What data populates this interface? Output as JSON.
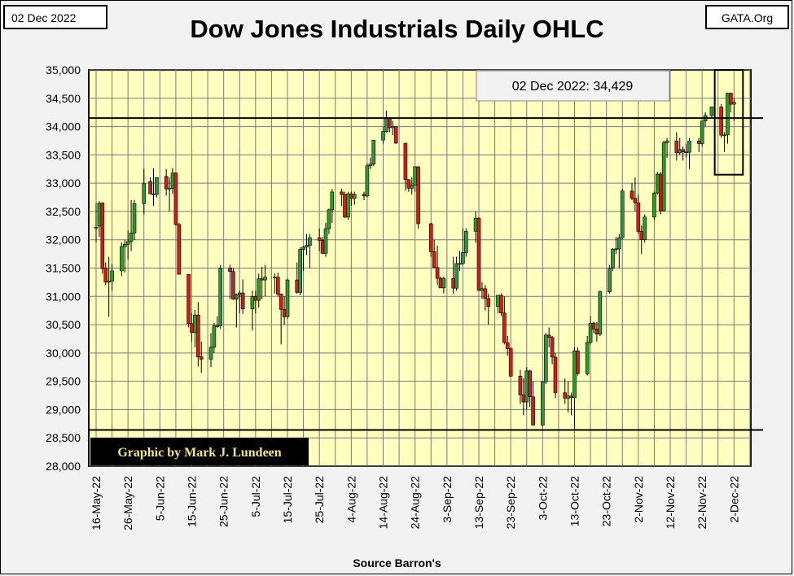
{
  "header": {
    "date_label": "02 Dec 2022",
    "source_label": "GATA.Org",
    "title": "Dow Jones Industrials Daily OHLC"
  },
  "annotation": {
    "callout": "02 Dec 2022: 34,429",
    "credit": "Graphic by Mark J. Lundeen"
  },
  "footer": {
    "source": "Source Barron's"
  },
  "colors": {
    "plot_bg": "#ffffc0",
    "up": "#2e9a2e",
    "down": "#cc1e1e",
    "grid": "#7a7a7a"
  },
  "chart_data": {
    "type": "ohlc",
    "title": "Dow Jones Industrials Daily OHLC",
    "xlabel": "",
    "ylabel": "",
    "ylim": [
      28000,
      35000
    ],
    "y_ticks": [
      "28,000",
      "28,500",
      "29,000",
      "29,500",
      "30,000",
      "30,500",
      "31,000",
      "31,500",
      "32,000",
      "32,500",
      "33,000",
      "33,500",
      "34,000",
      "34,500",
      "35,000"
    ],
    "x_ticks": [
      "16-May-22",
      "26-May-22",
      "5-Jun-22",
      "15-Jun-22",
      "25-Jun-22",
      "5-Jul-22",
      "15-Jul-22",
      "25-Jul-22",
      "4-Aug-22",
      "14-Aug-22",
      "24-Aug-22",
      "3-Sep-22",
      "13-Sep-22",
      "23-Sep-22",
      "3-Oct-22",
      "13-Oct-22",
      "23-Oct-22",
      "2-Nov-22",
      "12-Nov-22",
      "22-Nov-22",
      "2-Dec-22"
    ],
    "grid": true,
    "reference_lines": [
      34150,
      28640
    ],
    "highlight_range_days": [
      196,
      200
    ],
    "series": [
      {
        "day": 0,
        "o": 32210,
        "h": 32650,
        "l": 31950,
        "c": 32220
      },
      {
        "day": 1,
        "o": 32240,
        "h": 32680,
        "l": 32050,
        "c": 32640
      },
      {
        "day": 2,
        "o": 32650,
        "h": 32660,
        "l": 31400,
        "c": 31490
      },
      {
        "day": 3,
        "o": 31500,
        "h": 31600,
        "l": 31200,
        "c": 31250
      },
      {
        "day": 4,
        "o": 31250,
        "h": 31700,
        "l": 30640,
        "c": 31270
      },
      {
        "day": 5,
        "o": 31270,
        "h": 31580,
        "l": 31100,
        "c": 31450
      },
      {
        "day": 8,
        "o": 31450,
        "h": 31950,
        "l": 31360,
        "c": 31880
      },
      {
        "day": 9,
        "o": 31880,
        "h": 32000,
        "l": 31420,
        "c": 31920
      },
      {
        "day": 10,
        "o": 31920,
        "h": 32160,
        "l": 31650,
        "c": 31970
      },
      {
        "day": 11,
        "o": 31970,
        "h": 32700,
        "l": 31800,
        "c": 32120
      },
      {
        "day": 12,
        "o": 32120,
        "h": 32700,
        "l": 32000,
        "c": 32640
      },
      {
        "day": 15,
        "o": 32640,
        "h": 33250,
        "l": 32450,
        "c": 32990
      },
      {
        "day": 17,
        "o": 33030,
        "h": 33100,
        "l": 32810,
        "c": 32810
      },
      {
        "day": 18,
        "o": 32810,
        "h": 33260,
        "l": 32600,
        "c": 32800
      },
      {
        "day": 19,
        "o": 32800,
        "h": 33100,
        "l": 32750,
        "c": 33100
      },
      {
        "day": 22,
        "o": 33120,
        "h": 33250,
        "l": 32780,
        "c": 32900
      },
      {
        "day": 23,
        "o": 32900,
        "h": 33100,
        "l": 32500,
        "c": 32910
      },
      {
        "day": 24,
        "o": 32910,
        "h": 33270,
        "l": 32810,
        "c": 33180
      },
      {
        "day": 25,
        "o": 33180,
        "h": 33190,
        "l": 32250,
        "c": 32270
      },
      {
        "day": 26,
        "o": 32270,
        "h": 32300,
        "l": 31390,
        "c": 31390
      },
      {
        "day": 29,
        "o": 31390,
        "h": 31390,
        "l": 30450,
        "c": 30520
      },
      {
        "day": 30,
        "o": 30520,
        "h": 30710,
        "l": 30200,
        "c": 30360
      },
      {
        "day": 31,
        "o": 30360,
        "h": 30760,
        "l": 30100,
        "c": 30670
      },
      {
        "day": 32,
        "o": 30670,
        "h": 30900,
        "l": 29760,
        "c": 29930
      },
      {
        "day": 33,
        "o": 29930,
        "h": 30200,
        "l": 29650,
        "c": 29890
      },
      {
        "day": 36,
        "o": 29890,
        "h": 30350,
        "l": 29750,
        "c": 30100
      },
      {
        "day": 37,
        "o": 30100,
        "h": 30530,
        "l": 30000,
        "c": 30480
      },
      {
        "day": 38,
        "o": 30480,
        "h": 30650,
        "l": 30450,
        "c": 30480
      },
      {
        "day": 39,
        "o": 30480,
        "h": 31550,
        "l": 30430,
        "c": 31500
      },
      {
        "day": 42,
        "o": 31500,
        "h": 31560,
        "l": 30950,
        "c": 31440
      },
      {
        "day": 43,
        "o": 31440,
        "h": 31500,
        "l": 30940,
        "c": 30950
      },
      {
        "day": 44,
        "o": 30950,
        "h": 31050,
        "l": 30450,
        "c": 31030
      },
      {
        "day": 45,
        "o": 31030,
        "h": 31100,
        "l": 30700,
        "c": 31060
      },
      {
        "day": 46,
        "o": 31060,
        "h": 31300,
        "l": 30690,
        "c": 30780
      },
      {
        "day": 49,
        "o": 30780,
        "h": 31100,
        "l": 30400,
        "c": 31000
      },
      {
        "day": 50,
        "o": 31000,
        "h": 31100,
        "l": 30700,
        "c": 30930
      },
      {
        "day": 51,
        "o": 30930,
        "h": 31400,
        "l": 30800,
        "c": 31310
      },
      {
        "day": 52,
        "o": 31310,
        "h": 31520,
        "l": 30950,
        "c": 31290
      },
      {
        "day": 53,
        "o": 31290,
        "h": 31550,
        "l": 31000,
        "c": 31340
      },
      {
        "day": 56,
        "o": 31340,
        "h": 31400,
        "l": 31050,
        "c": 31340
      },
      {
        "day": 57,
        "o": 31340,
        "h": 31420,
        "l": 31000,
        "c": 31040
      },
      {
        "day": 58,
        "o": 31040,
        "h": 31050,
        "l": 30150,
        "c": 30770
      },
      {
        "day": 59,
        "o": 30770,
        "h": 31000,
        "l": 30500,
        "c": 30640
      },
      {
        "day": 60,
        "o": 30640,
        "h": 31320,
        "l": 30600,
        "c": 31290
      },
      {
        "day": 63,
        "o": 31290,
        "h": 31600,
        "l": 31050,
        "c": 31070
      },
      {
        "day": 64,
        "o": 31070,
        "h": 31870,
        "l": 31020,
        "c": 31830
      },
      {
        "day": 65,
        "o": 31830,
        "h": 31890,
        "l": 31450,
        "c": 31870
      },
      {
        "day": 66,
        "o": 31870,
        "h": 32100,
        "l": 31730,
        "c": 31900
      },
      {
        "day": 67,
        "o": 31900,
        "h": 32100,
        "l": 31500,
        "c": 32036
      },
      {
        "day": 70,
        "o": 32036,
        "h": 32200,
        "l": 31800,
        "c": 31990
      },
      {
        "day": 71,
        "o": 31990,
        "h": 32050,
        "l": 31750,
        "c": 31760
      },
      {
        "day": 72,
        "o": 31760,
        "h": 32300,
        "l": 31700,
        "c": 32197
      },
      {
        "day": 73,
        "o": 32197,
        "h": 32550,
        "l": 32100,
        "c": 32530
      },
      {
        "day": 74,
        "o": 32530,
        "h": 32900,
        "l": 32300,
        "c": 32845
      },
      {
        "day": 77,
        "o": 32845,
        "h": 32900,
        "l": 32600,
        "c": 32800
      },
      {
        "day": 78,
        "o": 32800,
        "h": 32850,
        "l": 32380,
        "c": 32400
      },
      {
        "day": 79,
        "o": 32400,
        "h": 32850,
        "l": 32350,
        "c": 32810
      },
      {
        "day": 80,
        "o": 32810,
        "h": 32850,
        "l": 32600,
        "c": 32730
      },
      {
        "day": 81,
        "o": 32730,
        "h": 32850,
        "l": 32620,
        "c": 32803
      },
      {
        "day": 84,
        "o": 32803,
        "h": 32850,
        "l": 32700,
        "c": 32774
      },
      {
        "day": 85,
        "o": 32774,
        "h": 33350,
        "l": 32750,
        "c": 33309
      },
      {
        "day": 86,
        "o": 33309,
        "h": 33450,
        "l": 33250,
        "c": 33336
      },
      {
        "day": 87,
        "o": 33336,
        "h": 33750,
        "l": 33300,
        "c": 33761
      },
      {
        "day": 90,
        "o": 33761,
        "h": 34000,
        "l": 33700,
        "c": 33912
      },
      {
        "day": 91,
        "o": 33912,
        "h": 34280,
        "l": 33900,
        "c": 34152
      },
      {
        "day": 92,
        "o": 34152,
        "h": 34150,
        "l": 33900,
        "c": 33980
      },
      {
        "day": 93,
        "o": 33980,
        "h": 34100,
        "l": 33850,
        "c": 33999
      },
      {
        "day": 94,
        "o": 33999,
        "h": 33990,
        "l": 33700,
        "c": 33706
      },
      {
        "day": 97,
        "o": 33706,
        "h": 33710,
        "l": 32870,
        "c": 33063
      },
      {
        "day": 98,
        "o": 33063,
        "h": 33000,
        "l": 32850,
        "c": 32910
      },
      {
        "day": 99,
        "o": 32910,
        "h": 33100,
        "l": 32800,
        "c": 32970
      },
      {
        "day": 100,
        "o": 32970,
        "h": 33300,
        "l": 32850,
        "c": 33290
      },
      {
        "day": 101,
        "o": 33290,
        "h": 33300,
        "l": 32200,
        "c": 32283
      },
      {
        "day": 105,
        "o": 32283,
        "h": 32300,
        "l": 31700,
        "c": 31790
      },
      {
        "day": 106,
        "o": 31790,
        "h": 32000,
        "l": 31500,
        "c": 31510
      },
      {
        "day": 107,
        "o": 31510,
        "h": 31900,
        "l": 31200,
        "c": 31320
      },
      {
        "day": 108,
        "o": 31320,
        "h": 31350,
        "l": 31150,
        "c": 31150
      },
      {
        "day": 109,
        "o": 31150,
        "h": 31350,
        "l": 31050,
        "c": 31318
      },
      {
        "day": 112,
        "o": 31318,
        "h": 31700,
        "l": 31050,
        "c": 31145
      },
      {
        "day": 113,
        "o": 31145,
        "h": 31700,
        "l": 31100,
        "c": 31580
      },
      {
        "day": 114,
        "o": 31580,
        "h": 31800,
        "l": 31450,
        "c": 31581
      },
      {
        "day": 115,
        "o": 31581,
        "h": 32200,
        "l": 31550,
        "c": 31774
      },
      {
        "day": 116,
        "o": 31774,
        "h": 32200,
        "l": 31700,
        "c": 32151
      },
      {
        "day": 119,
        "o": 32151,
        "h": 32500,
        "l": 31950,
        "c": 32381
      },
      {
        "day": 120,
        "o": 32381,
        "h": 32400,
        "l": 31100,
        "c": 31104
      },
      {
        "day": 121,
        "o": 31104,
        "h": 31250,
        "l": 30950,
        "c": 31135
      },
      {
        "day": 122,
        "o": 31135,
        "h": 31200,
        "l": 30750,
        "c": 30961
      },
      {
        "day": 123,
        "o": 30961,
        "h": 31050,
        "l": 30500,
        "c": 30822
      },
      {
        "day": 126,
        "o": 30822,
        "h": 31000,
        "l": 30700,
        "c": 31019
      },
      {
        "day": 127,
        "o": 31019,
        "h": 31050,
        "l": 30650,
        "c": 30706
      },
      {
        "day": 128,
        "o": 30706,
        "h": 31000,
        "l": 30150,
        "c": 30184
      },
      {
        "day": 129,
        "o": 30184,
        "h": 30300,
        "l": 29950,
        "c": 30077
      },
      {
        "day": 130,
        "o": 30077,
        "h": 30100,
        "l": 29580,
        "c": 29590
      },
      {
        "day": 133,
        "o": 29590,
        "h": 29700,
        "l": 29100,
        "c": 29260
      },
      {
        "day": 134,
        "o": 29260,
        "h": 29550,
        "l": 28900,
        "c": 29135
      },
      {
        "day": 135,
        "o": 29135,
        "h": 29750,
        "l": 29000,
        "c": 29684
      },
      {
        "day": 136,
        "o": 29684,
        "h": 29700,
        "l": 29050,
        "c": 29226
      },
      {
        "day": 137,
        "o": 29226,
        "h": 29500,
        "l": 28715,
        "c": 28726
      },
      {
        "day": 140,
        "o": 28726,
        "h": 29500,
        "l": 28700,
        "c": 29490
      },
      {
        "day": 141,
        "o": 29490,
        "h": 30350,
        "l": 29450,
        "c": 30316
      },
      {
        "day": 142,
        "o": 30316,
        "h": 30450,
        "l": 30100,
        "c": 30273
      },
      {
        "day": 143,
        "o": 30273,
        "h": 30300,
        "l": 29800,
        "c": 29927
      },
      {
        "day": 144,
        "o": 29927,
        "h": 30000,
        "l": 29200,
        "c": 29297
      },
      {
        "day": 147,
        "o": 29297,
        "h": 29550,
        "l": 29100,
        "c": 29202
      },
      {
        "day": 148,
        "o": 29202,
        "h": 29500,
        "l": 28950,
        "c": 29240
      },
      {
        "day": 149,
        "o": 29240,
        "h": 29300,
        "l": 28900,
        "c": 29210
      },
      {
        "day": 150,
        "o": 29210,
        "h": 30100,
        "l": 28660,
        "c": 30038
      },
      {
        "day": 151,
        "o": 30038,
        "h": 30100,
        "l": 29600,
        "c": 29634
      },
      {
        "day": 154,
        "o": 29634,
        "h": 30300,
        "l": 29600,
        "c": 30186
      },
      {
        "day": 155,
        "o": 30186,
        "h": 30650,
        "l": 30150,
        "c": 30524
      },
      {
        "day": 156,
        "o": 30524,
        "h": 30550,
        "l": 30350,
        "c": 30423
      },
      {
        "day": 157,
        "o": 30423,
        "h": 30550,
        "l": 30200,
        "c": 30333
      },
      {
        "day": 158,
        "o": 30333,
        "h": 31100,
        "l": 30300,
        "c": 31082
      },
      {
        "day": 161,
        "o": 31082,
        "h": 31550,
        "l": 31050,
        "c": 31499
      },
      {
        "day": 162,
        "o": 31499,
        "h": 31850,
        "l": 31450,
        "c": 31836
      },
      {
        "day": 163,
        "o": 31836,
        "h": 32050,
        "l": 31750,
        "c": 31839
      },
      {
        "day": 164,
        "o": 31839,
        "h": 32100,
        "l": 31500,
        "c": 32033
      },
      {
        "day": 165,
        "o": 32033,
        "h": 32900,
        "l": 32000,
        "c": 32861
      },
      {
        "day": 168,
        "o": 32861,
        "h": 33000,
        "l": 32700,
        "c": 32733
      },
      {
        "day": 169,
        "o": 32733,
        "h": 33100,
        "l": 32500,
        "c": 32653
      },
      {
        "day": 170,
        "o": 32653,
        "h": 32800,
        "l": 32100,
        "c": 32148
      },
      {
        "day": 171,
        "o": 32148,
        "h": 32250,
        "l": 31750,
        "c": 32001
      },
      {
        "day": 172,
        "o": 32001,
        "h": 32450,
        "l": 31950,
        "c": 32403
      },
      {
        "day": 175,
        "o": 32403,
        "h": 32850,
        "l": 32350,
        "c": 32827
      },
      {
        "day": 176,
        "o": 32827,
        "h": 33200,
        "l": 32800,
        "c": 33160
      },
      {
        "day": 177,
        "o": 33160,
        "h": 33200,
        "l": 32450,
        "c": 32513
      },
      {
        "day": 178,
        "o": 32513,
        "h": 33750,
        "l": 32500,
        "c": 33715
      },
      {
        "day": 179,
        "o": 33715,
        "h": 33800,
        "l": 33450,
        "c": 33747
      },
      {
        "day": 182,
        "o": 33747,
        "h": 33900,
        "l": 33400,
        "c": 33537
      },
      {
        "day": 183,
        "o": 33537,
        "h": 33800,
        "l": 33500,
        "c": 33593
      },
      {
        "day": 184,
        "o": 33593,
        "h": 33650,
        "l": 33400,
        "c": 33553
      },
      {
        "day": 185,
        "o": 33553,
        "h": 33700,
        "l": 33450,
        "c": 33546
      },
      {
        "day": 186,
        "o": 33546,
        "h": 33800,
        "l": 33250,
        "c": 33745
      },
      {
        "day": 189,
        "o": 33745,
        "h": 33800,
        "l": 33550,
        "c": 33700
      },
      {
        "day": 190,
        "o": 33700,
        "h": 34100,
        "l": 33650,
        "c": 34098
      },
      {
        "day": 191,
        "o": 34098,
        "h": 34250,
        "l": 34000,
        "c": 34194
      },
      {
        "day": 193,
        "o": 34194,
        "h": 34350,
        "l": 34150,
        "c": 34347
      },
      {
        "day": 196,
        "o": 34347,
        "h": 34400,
        "l": 33800,
        "c": 33849
      },
      {
        "day": 197,
        "o": 33849,
        "h": 33900,
        "l": 33550,
        "c": 33852
      },
      {
        "day": 198,
        "o": 33852,
        "h": 34600,
        "l": 33700,
        "c": 34590
      },
      {
        "day": 199,
        "o": 34590,
        "h": 34600,
        "l": 34250,
        "c": 34395
      },
      {
        "day": 200,
        "o": 34395,
        "h": 34500,
        "l": 34100,
        "c": 34429
      }
    ]
  }
}
